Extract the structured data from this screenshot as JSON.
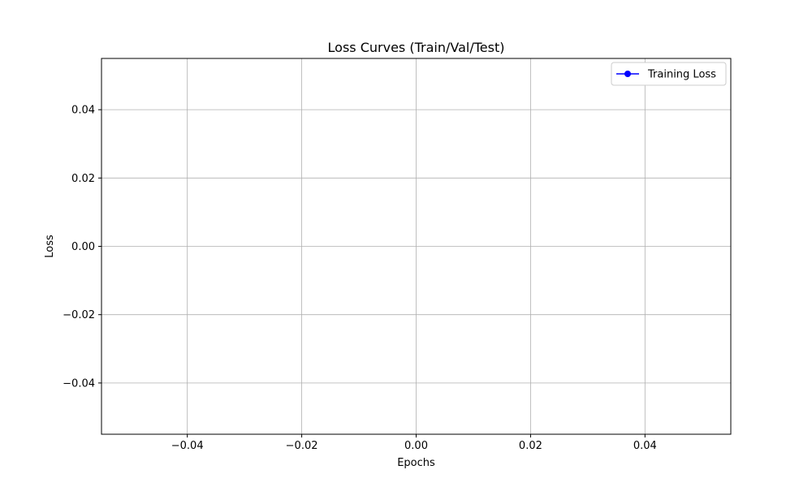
{
  "chart_data": {
    "type": "line",
    "title": "Loss Curves (Train/Val/Test)",
    "xlabel": "Epochs",
    "ylabel": "Loss",
    "xlim": [
      -0.055,
      0.055
    ],
    "ylim": [
      -0.055,
      0.055
    ],
    "xticks": [
      -0.04,
      -0.02,
      0.0,
      0.02,
      0.04
    ],
    "xtick_labels": [
      "−0.04",
      "−0.02",
      "0.00",
      "0.02",
      "0.04"
    ],
    "yticks": [
      0.04,
      0.02,
      0.0,
      -0.02,
      -0.04
    ],
    "ytick_labels": [
      "0.04",
      "0.02",
      "0.00",
      "−0.02",
      "−0.04"
    ],
    "grid": true,
    "legend_position": "top-right",
    "series": [
      {
        "name": "Training Loss",
        "color": "#0000ff",
        "marker": "circle",
        "x": [],
        "y": []
      }
    ]
  }
}
